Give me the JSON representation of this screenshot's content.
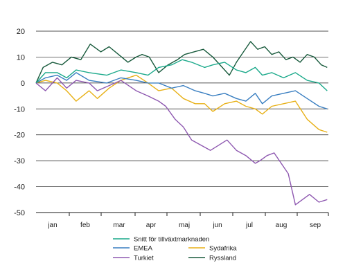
{
  "chart_data": {
    "type": "line",
    "title": "",
    "xlabel": "",
    "ylabel": "",
    "ylim": [
      -50,
      20
    ],
    "yticks": [
      20,
      10,
      0,
      -10,
      -20,
      -30,
      -40,
      -50
    ],
    "xlim_days": [
      0,
      248
    ],
    "x_tick_labels": [
      "jan",
      "feb",
      "mar",
      "apr",
      "maj",
      "jun",
      "jul",
      "aug",
      "sep"
    ],
    "grid": "horizontal",
    "legend_position": "bottom",
    "series": [
      {
        "name": "Snitt för tillväxtmarknaden",
        "color": "#1aa98a",
        "x": [
          0,
          8,
          18,
          26,
          34,
          45,
          60,
          72,
          85,
          95,
          104,
          115,
          124,
          132,
          143,
          150,
          160,
          170,
          178,
          186,
          192,
          200,
          210,
          220,
          230,
          240,
          247
        ],
        "y": [
          0,
          4,
          4,
          2,
          5,
          4,
          3,
          5,
          4,
          3,
          6,
          7,
          9,
          8,
          6,
          7,
          8,
          5,
          4,
          6,
          3,
          4,
          2,
          4,
          1,
          0,
          -3
        ]
      },
      {
        "name": "EMEA",
        "color": "#3a7fc1",
        "x": [
          0,
          8,
          18,
          26,
          34,
          45,
          60,
          72,
          85,
          95,
          104,
          115,
          125,
          135,
          143,
          150,
          160,
          170,
          178,
          186,
          192,
          200,
          210,
          220,
          230,
          240,
          247
        ],
        "y": [
          0,
          2,
          3,
          1,
          4,
          1,
          0,
          2,
          1,
          0,
          0,
          -2,
          -1,
          -3,
          -4,
          -5,
          -4,
          -6,
          -7,
          -4,
          -8,
          -5,
          -4,
          -3,
          -6,
          -9,
          -10
        ]
      },
      {
        "name": "Sydafrika",
        "color": "#e8b118",
        "x": [
          0,
          8,
          18,
          26,
          34,
          45,
          52,
          62,
          72,
          85,
          95,
          104,
          115,
          125,
          135,
          143,
          150,
          160,
          170,
          178,
          186,
          192,
          200,
          210,
          220,
          230,
          240,
          247
        ],
        "y": [
          0,
          1,
          0,
          -3,
          -7,
          -3,
          -6,
          -2,
          1,
          3,
          0,
          -3,
          -2,
          -6,
          -8,
          -8,
          -11,
          -8,
          -7,
          -9,
          -10,
          -12,
          -9,
          -8,
          -7,
          -14,
          -18,
          -19
        ]
      },
      {
        "name": "Turkiet",
        "color": "#8e58b0",
        "x": [
          0,
          8,
          18,
          26,
          34,
          45,
          52,
          62,
          72,
          85,
          95,
          104,
          110,
          118,
          125,
          132,
          140,
          148,
          155,
          162,
          170,
          178,
          186,
          190,
          196,
          202,
          208,
          214,
          220,
          226,
          232,
          240,
          247
        ],
        "y": [
          0,
          -3,
          2,
          -2,
          1,
          0,
          -3,
          -1,
          1,
          -3,
          -5,
          -7,
          -9,
          -14,
          -17,
          -22,
          -24,
          -26,
          -24,
          -22,
          -26,
          -28,
          -31,
          -30,
          -28,
          -27,
          -31,
          -35,
          -47,
          -45,
          -43,
          -46,
          -45
        ]
      },
      {
        "name": "Ryssland",
        "color": "#185a3c",
        "x": [
          0,
          6,
          14,
          22,
          30,
          38,
          46,
          55,
          62,
          70,
          78,
          85,
          90,
          96,
          104,
          112,
          120,
          126,
          134,
          142,
          150,
          158,
          164,
          170,
          176,
          182,
          188,
          194,
          200,
          206,
          212,
          218,
          224,
          230,
          236,
          242,
          247
        ],
        "y": [
          0,
          6,
          8,
          7,
          10,
          9,
          15,
          12,
          14,
          11,
          8,
          10,
          11,
          10,
          4,
          7,
          9,
          11,
          12,
          13,
          10,
          6,
          3,
          8,
          12,
          16,
          13,
          14,
          11,
          12,
          9,
          10,
          8,
          11,
          10,
          7,
          6
        ]
      }
    ]
  }
}
